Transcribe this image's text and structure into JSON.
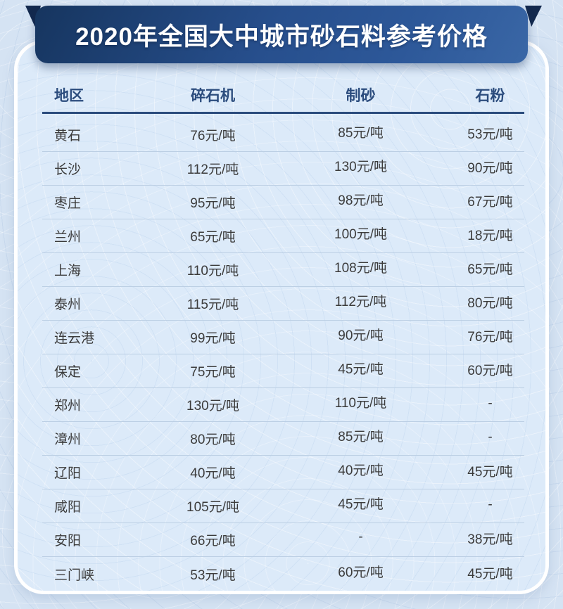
{
  "banner": {
    "title": "2020年全国大中城市砂石料参考价格"
  },
  "chart_data": {
    "type": "table",
    "title": "2020年全国大中城市砂石料参考价格",
    "columns": [
      "地区",
      "碎石机",
      "制砂",
      "石粉"
    ],
    "rows": [
      [
        "黄石",
        "76元/吨",
        "85元/吨",
        "53元/吨"
      ],
      [
        "长沙",
        "112元/吨",
        "130元/吨",
        "90元/吨"
      ],
      [
        "枣庄",
        "95元/吨",
        "98元/吨",
        "67元/吨"
      ],
      [
        "兰州",
        "65元/吨",
        "100元/吨",
        "18元/吨"
      ],
      [
        "上海",
        "110元/吨",
        "108元/吨",
        "65元/吨"
      ],
      [
        "泰州",
        "115元/吨",
        "112元/吨",
        "80元/吨"
      ],
      [
        "连云港",
        "99元/吨",
        "90元/吨",
        "76元/吨"
      ],
      [
        "保定",
        "75元/吨",
        "45元/吨",
        "60元/吨"
      ],
      [
        "郑州",
        "130元/吨",
        "110元/吨",
        "-"
      ],
      [
        "漳州",
        "80元/吨",
        "85元/吨",
        "-"
      ],
      [
        "辽阳",
        "40元/吨",
        "40元/吨",
        "45元/吨"
      ],
      [
        "咸阳",
        "105元/吨",
        "45元/吨",
        "-"
      ],
      [
        "安阳",
        "66元/吨",
        "-",
        "38元/吨"
      ],
      [
        "三门峡",
        "53元/吨",
        "60元/吨",
        "45元/吨"
      ]
    ],
    "layout": {
      "header_rule": true,
      "row_dividers": true,
      "price_unit_shown_in_cells": "元/吨"
    }
  },
  "colors": {
    "page_bg": "#d5e3f3",
    "card_bg": "#dceaf9",
    "card_border": "#ffffff",
    "banner_gradient_start": "#16355f",
    "banner_gradient_end": "#3a67a6",
    "ribbon_fold": "#13294e",
    "banner_text": "#ffffff",
    "header_text": "#2b4c7d",
    "row_text": "#3b3b3b",
    "row_divider": "#bccfe4"
  }
}
